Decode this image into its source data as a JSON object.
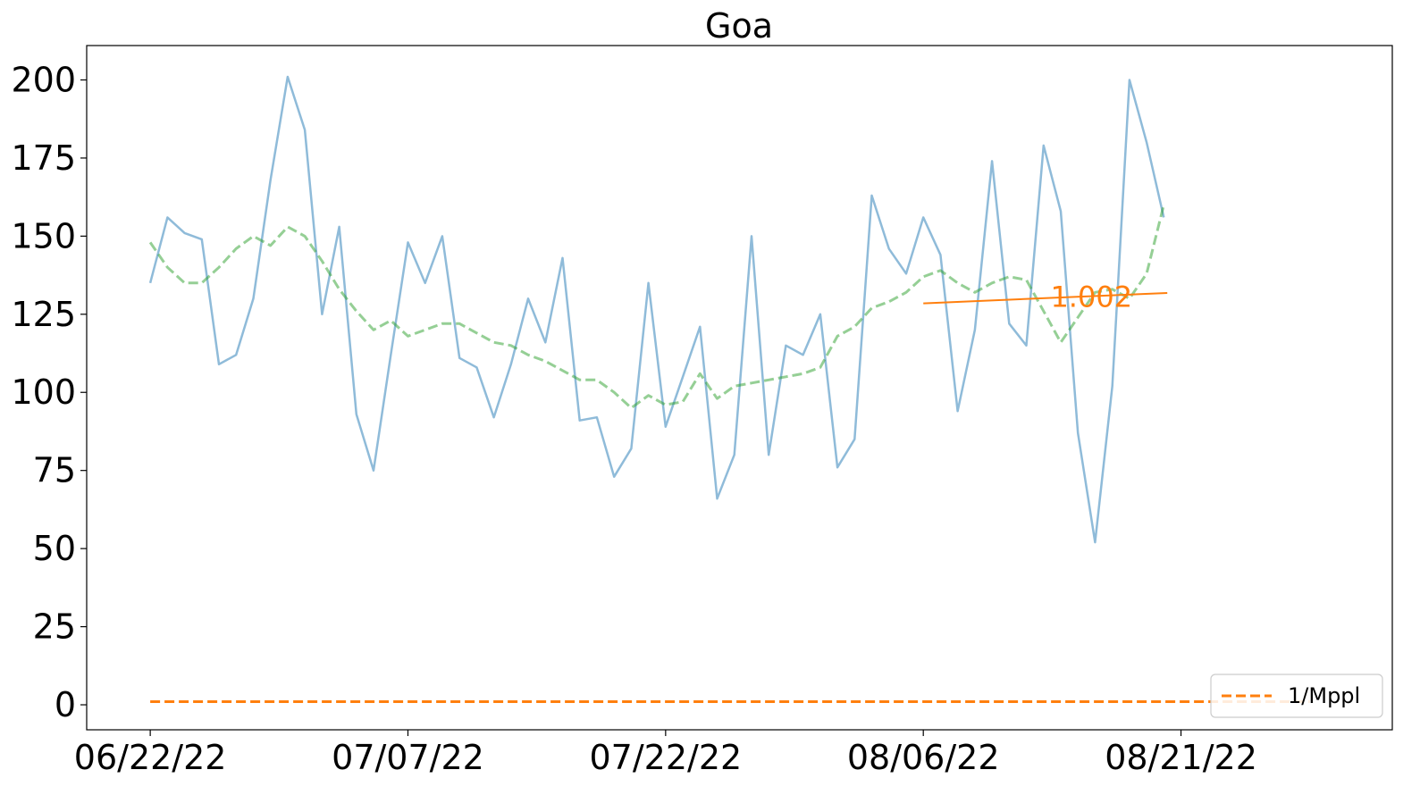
{
  "chart_data": {
    "type": "line",
    "title": "Goa",
    "xlabel": "",
    "ylabel": "",
    "x_start": "06/22/22",
    "x_tick_labels": [
      "06/22/22",
      "07/07/22",
      "07/22/22",
      "08/06/22",
      "08/21/22"
    ],
    "x_tick_days": [
      0,
      15,
      30,
      45,
      60
    ],
    "xlim_days": [
      -3.7,
      72.3
    ],
    "ylim": [
      -8,
      211
    ],
    "y_ticks": [
      0,
      25,
      50,
      75,
      100,
      125,
      150,
      175,
      200
    ],
    "y_tick_labels": [
      "0",
      "25",
      "50",
      "75",
      "100",
      "125",
      "150",
      "175",
      "200"
    ],
    "grid": false,
    "legend_position": "lower right",
    "series": [
      {
        "style": "solid",
        "color": "#1f77b4",
        "opacity": 0.5,
        "values": [
          135,
          156,
          151,
          149,
          109,
          112,
          130,
          168,
          201,
          184,
          125,
          153,
          93,
          75,
          112,
          148,
          135,
          150,
          111,
          108,
          92,
          109,
          130,
          116,
          143,
          91,
          92,
          73,
          82,
          135,
          89,
          105,
          121,
          66,
          80,
          150,
          80,
          115,
          112,
          125,
          76,
          85,
          163,
          146,
          138,
          156,
          144,
          94,
          120,
          174,
          122,
          115,
          179,
          158,
          87,
          52,
          102,
          200,
          180,
          156
        ]
      },
      {
        "style": "dashed",
        "color": "#2ca02c",
        "opacity": 0.5,
        "values": [
          148,
          140,
          135,
          135,
          140,
          146,
          150,
          147,
          153,
          150,
          142,
          133,
          126,
          120,
          123,
          118,
          120,
          122,
          122,
          119,
          116,
          115,
          112,
          110,
          107,
          104,
          104,
          100,
          95,
          99,
          96,
          97,
          106,
          98,
          102,
          103,
          104,
          105,
          106,
          108,
          118,
          121,
          127,
          129,
          132,
          137,
          139,
          135,
          132,
          135,
          137,
          136,
          126,
          116,
          124,
          132,
          133,
          130,
          138,
          160
        ]
      },
      {
        "name": "1/Mppl",
        "style": "dashed",
        "color": "#ff7f0e",
        "x_days": [
          0,
          67.5
        ],
        "values": [
          1.0,
          1.0
        ]
      },
      {
        "style": "solid",
        "color": "#ff7f0e",
        "x_days": [
          45,
          59.2
        ],
        "values": [
          128.5,
          131.8
        ]
      }
    ],
    "annotations": [
      {
        "text": "1.002",
        "x_day": 52.4,
        "y": 130.5,
        "color": "#ff7f0e"
      }
    ]
  }
}
